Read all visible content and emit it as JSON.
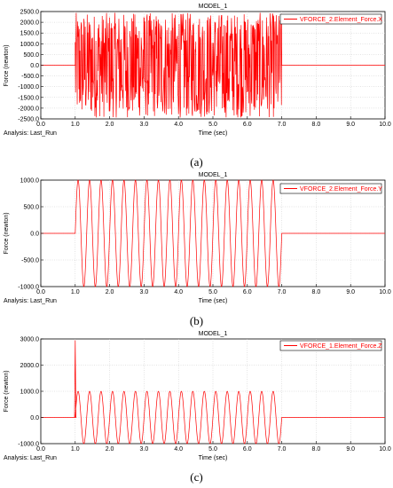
{
  "figure_labels": [
    "(a)",
    "(b)",
    "(c)"
  ],
  "chart_data": [
    {
      "type": "line",
      "title": "MODEL_1",
      "xlabel": "Time (sec)",
      "ylabel": "Force (newton)",
      "xlim": [
        0.0,
        10.0
      ],
      "ylim": [
        -2500.0,
        2500.0
      ],
      "xticks": [
        "0.0",
        "1.0",
        "2.0",
        "3.0",
        "4.0",
        "5.0",
        "6.0",
        "7.0",
        "8.0",
        "9.0",
        "10.0"
      ],
      "yticks": [
        "2500.0",
        "2000.0",
        "1500.0",
        "1000.0",
        "500.0",
        "0.0",
        "-500.0",
        "-1000.0",
        "-1500.0",
        "-2000.0",
        "-2500.0"
      ],
      "grid": true,
      "legend_position": "top-right",
      "analysis": "Analysis:  Last_Run",
      "series": [
        {
          "name": "VFORCE_2.Element_Force.X",
          "color": "#ff0000",
          "description": "random excitation",
          "x": [
            0.0,
            1.0,
            1.0,
            7.0,
            7.0,
            10.0
          ],
          "y": [
            0.0,
            0.0,
            2500.0,
            -2500.0,
            0.0,
            0.0
          ]
        }
      ]
    },
    {
      "type": "line",
      "title": "MODEL_1",
      "xlabel": "Time (sec)",
      "ylabel": "Force (newton)",
      "xlim": [
        0.0,
        10.0
      ],
      "ylim": [
        -1000.0,
        1000.0
      ],
      "xticks": [
        "0.0",
        "1.0",
        "2.0",
        "3.0",
        "4.0",
        "5.0",
        "6.0",
        "7.0",
        "8.0",
        "9.0",
        "10.0"
      ],
      "yticks": [
        "1000.0",
        "500.0",
        "0.0",
        "-500.0",
        "-1000.0"
      ],
      "grid": true,
      "legend_position": "top-right",
      "analysis": "Analysis:  Last_Run",
      "series": [
        {
          "name": "VFORCE_2.Element_Force.Y",
          "color": "#ff0000",
          "x": [
            0.0,
            1.0,
            7.0,
            10.0
          ],
          "y": [
            0.0,
            0.0,
            0.0,
            0.0
          ],
          "active_interval": [
            1.0,
            7.0
          ],
          "amplitude": 1000.0,
          "frequency_hz": 3.0
        }
      ]
    },
    {
      "type": "line",
      "title": "MODEL_1",
      "xlabel": "Time (sec)",
      "ylabel": "Force (newton)",
      "xlim": [
        0.0,
        10.0
      ],
      "ylim": [
        -1000.0,
        3000.0
      ],
      "xticks": [
        "0.0",
        "1.0",
        "2.0",
        "3.0",
        "4.0",
        "5.0",
        "6.0",
        "7.0",
        "8.0",
        "9.0",
        "10.0"
      ],
      "yticks": [
        "3000.0",
        "2000.0",
        "1000.0",
        "0.0",
        "-1000.0"
      ],
      "grid": true,
      "legend_position": "top-right",
      "analysis": "Analysis:  Last_Run",
      "series": [
        {
          "name": "VFORCE_1.Element_Force.Z",
          "color": "#ff0000",
          "x": [
            0.0,
            0.97,
            1.0,
            1.03,
            7.0,
            10.0
          ],
          "y": [
            0.0,
            0.0,
            2950.0,
            0.0,
            0.0,
            0.0
          ],
          "active_interval": [
            1.0,
            7.0
          ],
          "amplitude": 1000.0,
          "frequency_hz": 3.0,
          "spike": {
            "x": 1.0,
            "y": 2950.0
          }
        }
      ]
    }
  ]
}
